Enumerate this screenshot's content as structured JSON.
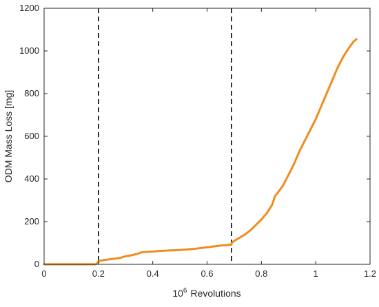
{
  "chart_data": {
    "type": "line",
    "title": "",
    "xlabel": {
      "base": "10",
      "exponent": "6",
      "text": "Revolutions"
    },
    "ylabel": "ODM Mass Loss [mg]",
    "xlim": [
      0,
      1.2
    ],
    "ylim": [
      0,
      1200
    ],
    "xticks": [
      0,
      0.2,
      0.4,
      0.6,
      0.8,
      1,
      1.2
    ],
    "xtick_labels": [
      "0",
      "0.2",
      "0.4",
      "0.6",
      "0.8",
      "1",
      "1.2"
    ],
    "yticks": [
      0,
      200,
      400,
      600,
      800,
      1000,
      1200
    ],
    "ytick_labels": [
      "0",
      "200",
      "400",
      "600",
      "800",
      "1000",
      "1200"
    ],
    "grid": false,
    "legend": "none",
    "vertical_lines": [
      {
        "x": 0.2,
        "style": "dashed",
        "color": "#000000"
      },
      {
        "x": 0.69,
        "style": "dashed",
        "color": "#000000"
      }
    ],
    "series": [
      {
        "color": "#f08c1e",
        "x": [
          0,
          0.1,
          0.19,
          0.2,
          0.2,
          0.22,
          0.25,
          0.28,
          0.3,
          0.32,
          0.34,
          0.35,
          0.36,
          0.38,
          0.4,
          0.43,
          0.46,
          0.5,
          0.55,
          0.6,
          0.65,
          0.69,
          0.69,
          0.7,
          0.72,
          0.74,
          0.76,
          0.78,
          0.8,
          0.82,
          0.84,
          0.85,
          0.86,
          0.88,
          0.9,
          0.92,
          0.94,
          0.96,
          0.98,
          1.0,
          1.02,
          1.04,
          1.06,
          1.08,
          1.1,
          1.12,
          1.14,
          1.15
        ],
        "y": [
          0,
          0,
          0,
          10,
          15,
          20,
          25,
          30,
          38,
          42,
          48,
          52,
          57,
          58,
          60,
          63,
          65,
          67,
          72,
          80,
          88,
          92,
          100,
          110,
          125,
          140,
          160,
          185,
          210,
          240,
          280,
          320,
          335,
          370,
          420,
          470,
          530,
          580,
          630,
          680,
          740,
          800,
          860,
          920,
          970,
          1010,
          1045,
          1055
        ]
      }
    ]
  }
}
